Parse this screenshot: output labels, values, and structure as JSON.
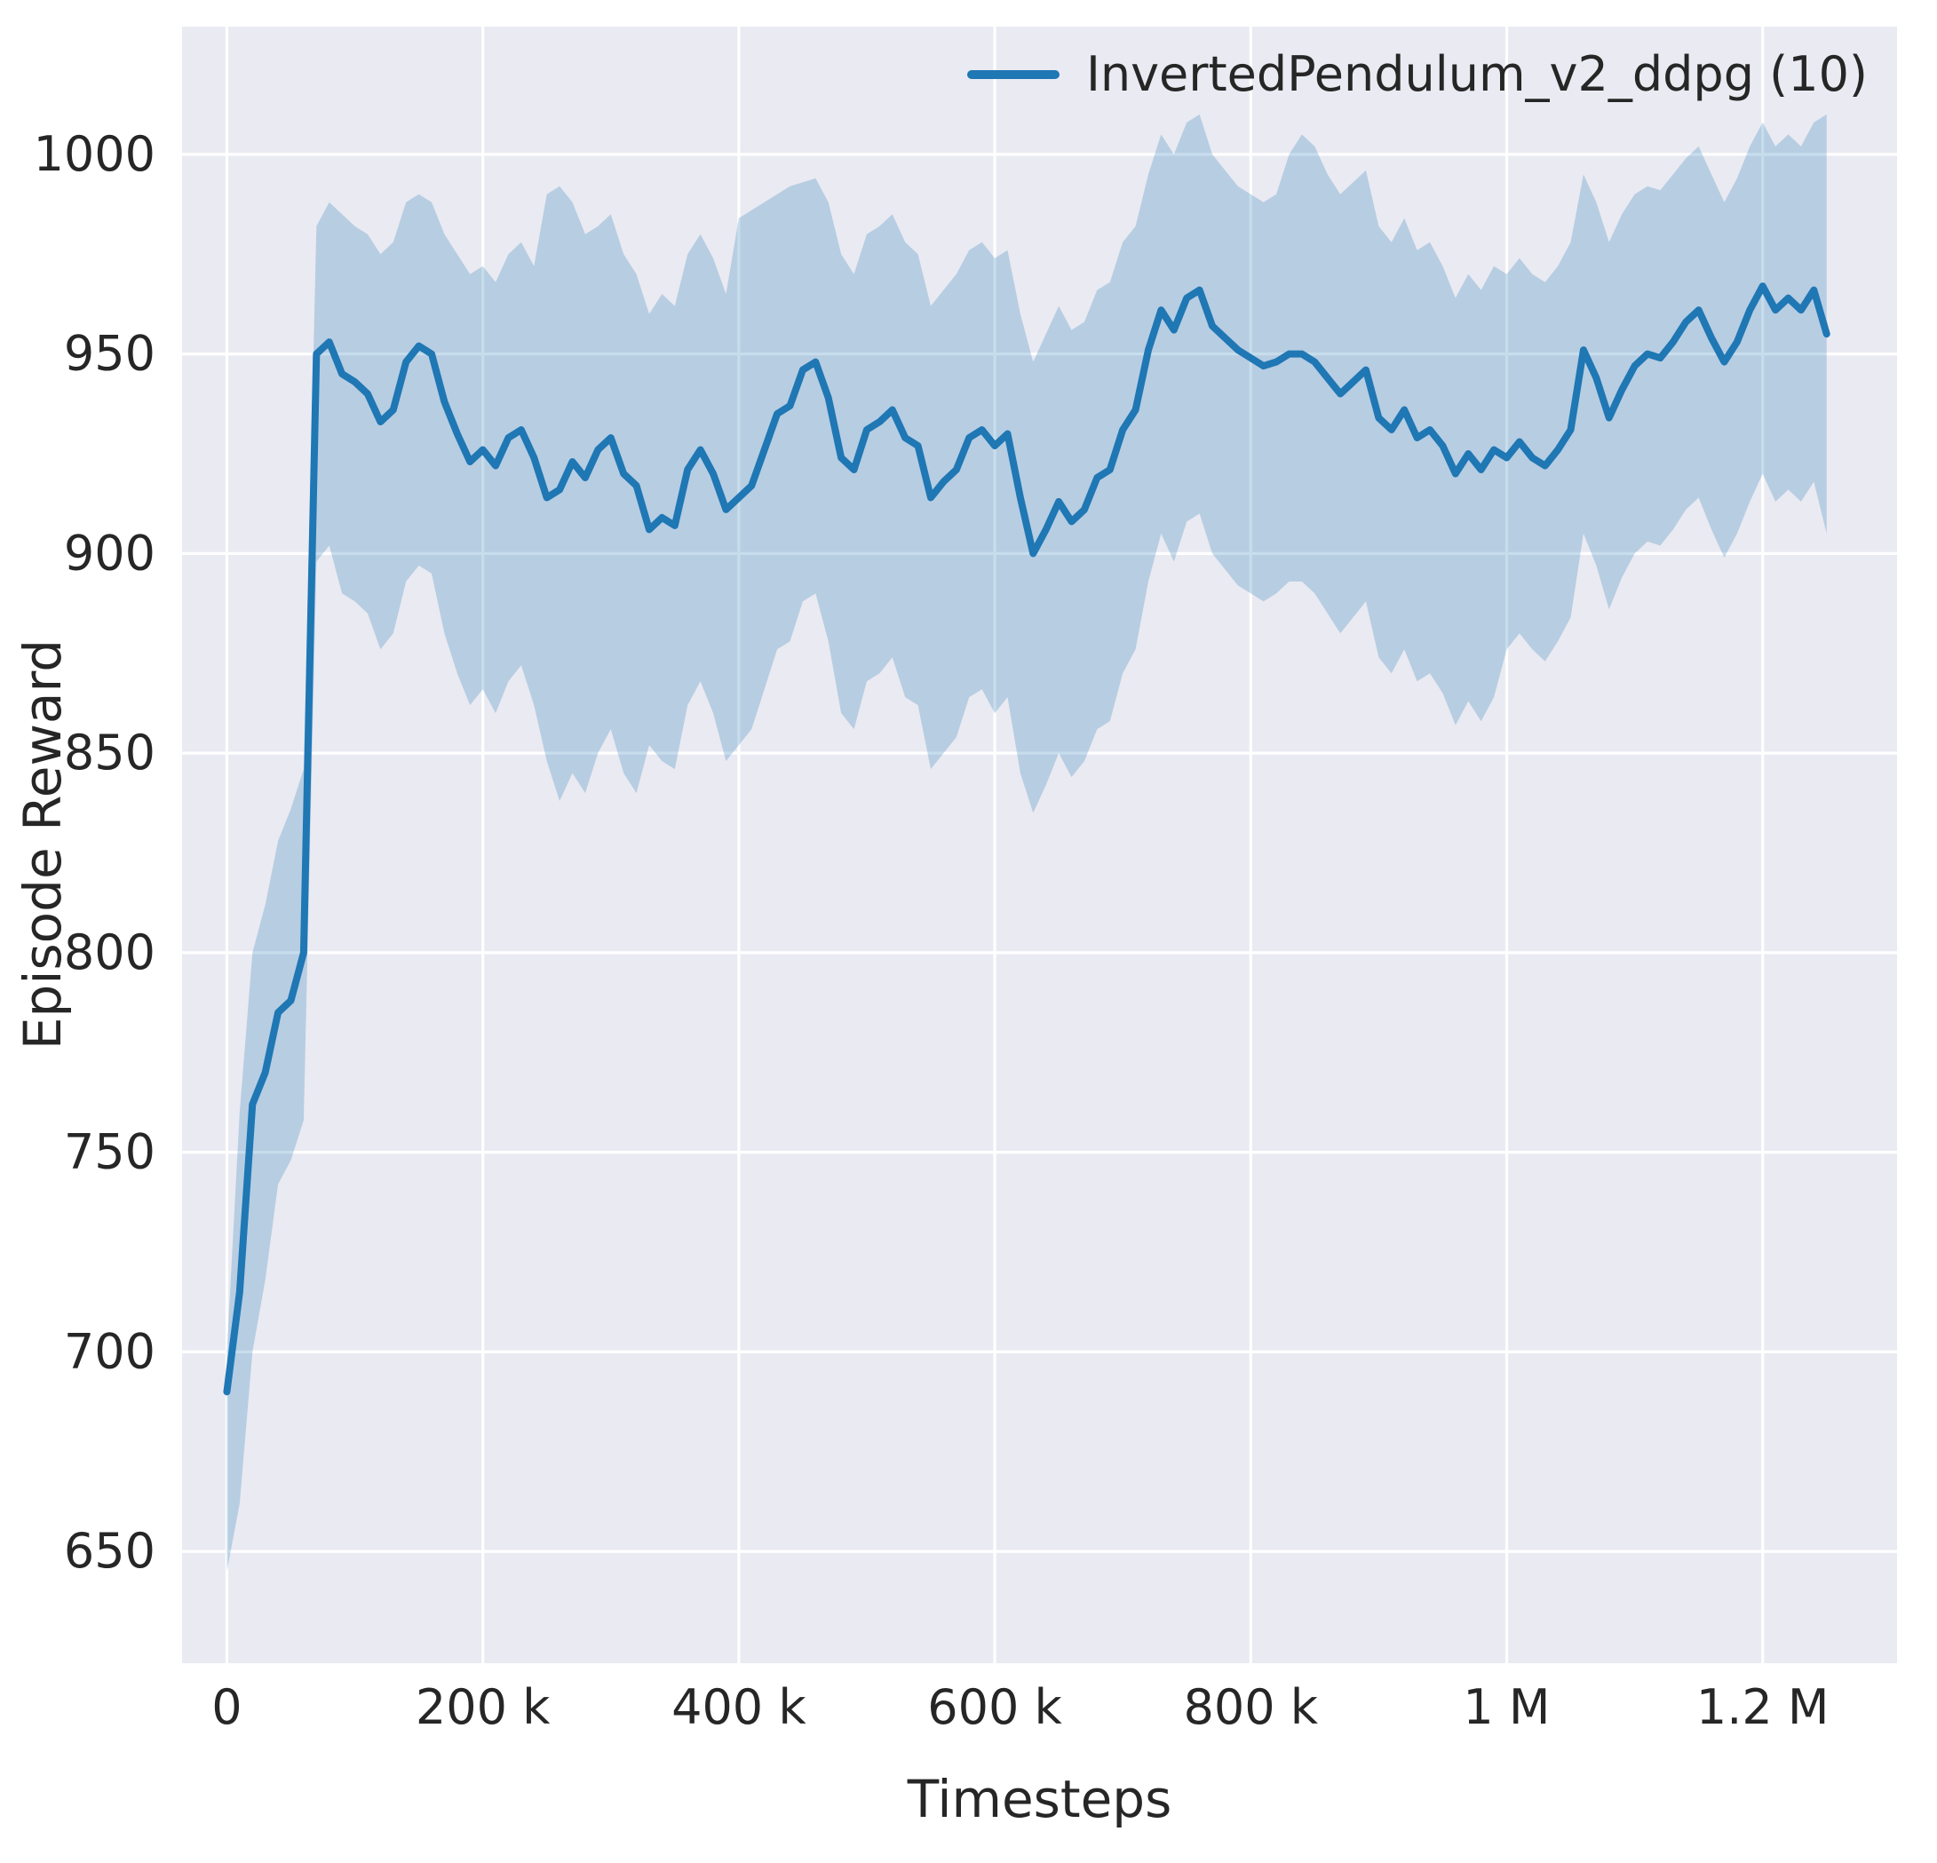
{
  "figure": {
    "xlabel": "Timesteps",
    "ylabel": "Episode Reward",
    "legend": {
      "label": "InvertedPendulum_v2_ddpg (10)"
    }
  },
  "style": {
    "plot_bg": "#eaeaf2",
    "grid_color": "#ffffff",
    "line_color": "#1f77b4",
    "band_color": "rgba(31,119,180,0.25)",
    "tick_color": "#262626"
  },
  "chart_data": {
    "type": "line",
    "title": "",
    "xlabel": "Timesteps",
    "ylabel": "Episode Reward",
    "legend_position": "upper right",
    "grid": true,
    "xlim": [
      -35000,
      1305000
    ],
    "ylim": [
      622,
      1032
    ],
    "x_ticks": [
      {
        "value": 0,
        "label": "0"
      },
      {
        "value": 200000,
        "label": "200 k"
      },
      {
        "value": 400000,
        "label": "400 k"
      },
      {
        "value": 600000,
        "label": "600 k"
      },
      {
        "value": 800000,
        "label": "800 k"
      },
      {
        "value": 1000000,
        "label": "1 M"
      },
      {
        "value": 1200000,
        "label": "1.2 M"
      }
    ],
    "y_ticks": [
      {
        "value": 650,
        "label": "650"
      },
      {
        "value": 700,
        "label": "700"
      },
      {
        "value": 750,
        "label": "750"
      },
      {
        "value": 800,
        "label": "800"
      },
      {
        "value": 850,
        "label": "850"
      },
      {
        "value": 900,
        "label": "900"
      },
      {
        "value": 950,
        "label": "950"
      },
      {
        "value": 1000,
        "label": "1000"
      }
    ],
    "series": [
      {
        "name": "InvertedPendulum_v2_ddpg (10)",
        "x": [
          0,
          10000,
          20000,
          30000,
          40000,
          50000,
          60000,
          70000,
          80000,
          90000,
          100000,
          110000,
          120000,
          130000,
          140000,
          150000,
          160000,
          170000,
          180000,
          190000,
          200000,
          210000,
          220000,
          230000,
          240000,
          250000,
          260000,
          270000,
          280000,
          290000,
          300000,
          310000,
          320000,
          330000,
          340000,
          350000,
          360000,
          370000,
          380000,
          390000,
          400000,
          410000,
          420000,
          430000,
          440000,
          450000,
          460000,
          470000,
          480000,
          490000,
          500000,
          510000,
          520000,
          530000,
          540000,
          550000,
          560000,
          570000,
          580000,
          590000,
          600000,
          610000,
          620000,
          630000,
          640000,
          650000,
          660000,
          670000,
          680000,
          690000,
          700000,
          710000,
          720000,
          730000,
          740000,
          750000,
          760000,
          770000,
          780000,
          790000,
          800000,
          810000,
          820000,
          830000,
          840000,
          850000,
          860000,
          870000,
          880000,
          890000,
          900000,
          910000,
          920000,
          930000,
          940000,
          950000,
          960000,
          970000,
          980000,
          990000,
          1000000,
          1010000,
          1020000,
          1030000,
          1040000,
          1050000,
          1060000,
          1070000,
          1080000,
          1090000,
          1100000,
          1110000,
          1120000,
          1130000,
          1140000,
          1150000,
          1160000,
          1170000,
          1180000,
          1190000,
          1200000,
          1210000,
          1220000,
          1230000,
          1240000,
          1250000
        ],
        "mean": [
          690,
          715,
          762,
          770,
          785,
          788,
          800,
          950,
          953,
          945,
          943,
          940,
          933,
          936,
          948,
          952,
          950,
          938,
          930,
          923,
          926,
          922,
          929,
          931,
          924,
          914,
          916,
          923,
          919,
          926,
          929,
          920,
          917,
          906,
          909,
          907,
          921,
          926,
          920,
          911,
          914,
          917,
          926,
          935,
          937,
          946,
          948,
          939,
          924,
          921,
          931,
          933,
          936,
          929,
          927,
          914,
          918,
          921,
          929,
          931,
          927,
          930,
          914,
          900,
          906,
          913,
          908,
          911,
          919,
          921,
          931,
          936,
          951,
          961,
          956,
          964,
          966,
          957,
          954,
          951,
          949,
          947,
          948,
          950,
          950,
          948,
          944,
          940,
          943,
          946,
          934,
          931,
          936,
          929,
          931,
          927,
          920,
          925,
          921,
          926,
          924,
          928,
          924,
          922,
          926,
          931,
          951,
          944,
          934,
          941,
          947,
          950,
          949,
          953,
          958,
          961,
          954,
          948,
          953,
          961,
          967,
          961,
          964,
          961,
          966,
          955
        ],
        "low": [
          645,
          662,
          700,
          718,
          742,
          748,
          758,
          898,
          902,
          890,
          888,
          885,
          876,
          880,
          893,
          897,
          895,
          880,
          870,
          862,
          866,
          860,
          868,
          872,
          862,
          848,
          838,
          845,
          840,
          850,
          856,
          845,
          840,
          852,
          848,
          846,
          862,
          868,
          860,
          848,
          852,
          856,
          866,
          876,
          878,
          888,
          890,
          878,
          860,
          856,
          868,
          870,
          874,
          864,
          862,
          846,
          850,
          854,
          864,
          866,
          860,
          864,
          845,
          835,
          842,
          850,
          844,
          848,
          856,
          858,
          870,
          876,
          893,
          905,
          898,
          908,
          910,
          900,
          896,
          892,
          890,
          888,
          890,
          893,
          893,
          890,
          885,
          880,
          884,
          888,
          874,
          870,
          876,
          868,
          870,
          865,
          857,
          863,
          858,
          864,
          876,
          880,
          876,
          873,
          878,
          884,
          905,
          897,
          886,
          894,
          900,
          903,
          902,
          906,
          911,
          914,
          906,
          899,
          905,
          913,
          920,
          913,
          916,
          913,
          918,
          905
        ],
        "high": [
          700,
          760,
          800,
          812,
          828,
          836,
          846,
          982,
          988,
          985,
          982,
          980,
          975,
          978,
          988,
          990,
          988,
          980,
          975,
          970,
          972,
          968,
          975,
          978,
          972,
          990,
          992,
          988,
          980,
          982,
          985,
          975,
          970,
          960,
          965,
          962,
          975,
          980,
          974,
          965,
          984,
          986,
          988,
          990,
          992,
          993,
          994,
          988,
          975,
          970,
          980,
          982,
          985,
          978,
          975,
          962,
          966,
          970,
          976,
          978,
          974,
          976,
          960,
          948,
          955,
          962,
          956,
          958,
          966,
          968,
          978,
          982,
          995,
          1005,
          1000,
          1008,
          1010,
          1000,
          996,
          992,
          990,
          988,
          990,
          1000,
          1005,
          1002,
          995,
          990,
          993,
          996,
          982,
          978,
          984,
          976,
          978,
          972,
          964,
          970,
          966,
          972,
          970,
          974,
          970,
          968,
          972,
          978,
          995,
          988,
          978,
          985,
          990,
          992,
          991,
          995,
          999,
          1002,
          995,
          988,
          994,
          1002,
          1008,
          1002,
          1005,
          1002,
          1008,
          1010
        ]
      }
    ]
  }
}
